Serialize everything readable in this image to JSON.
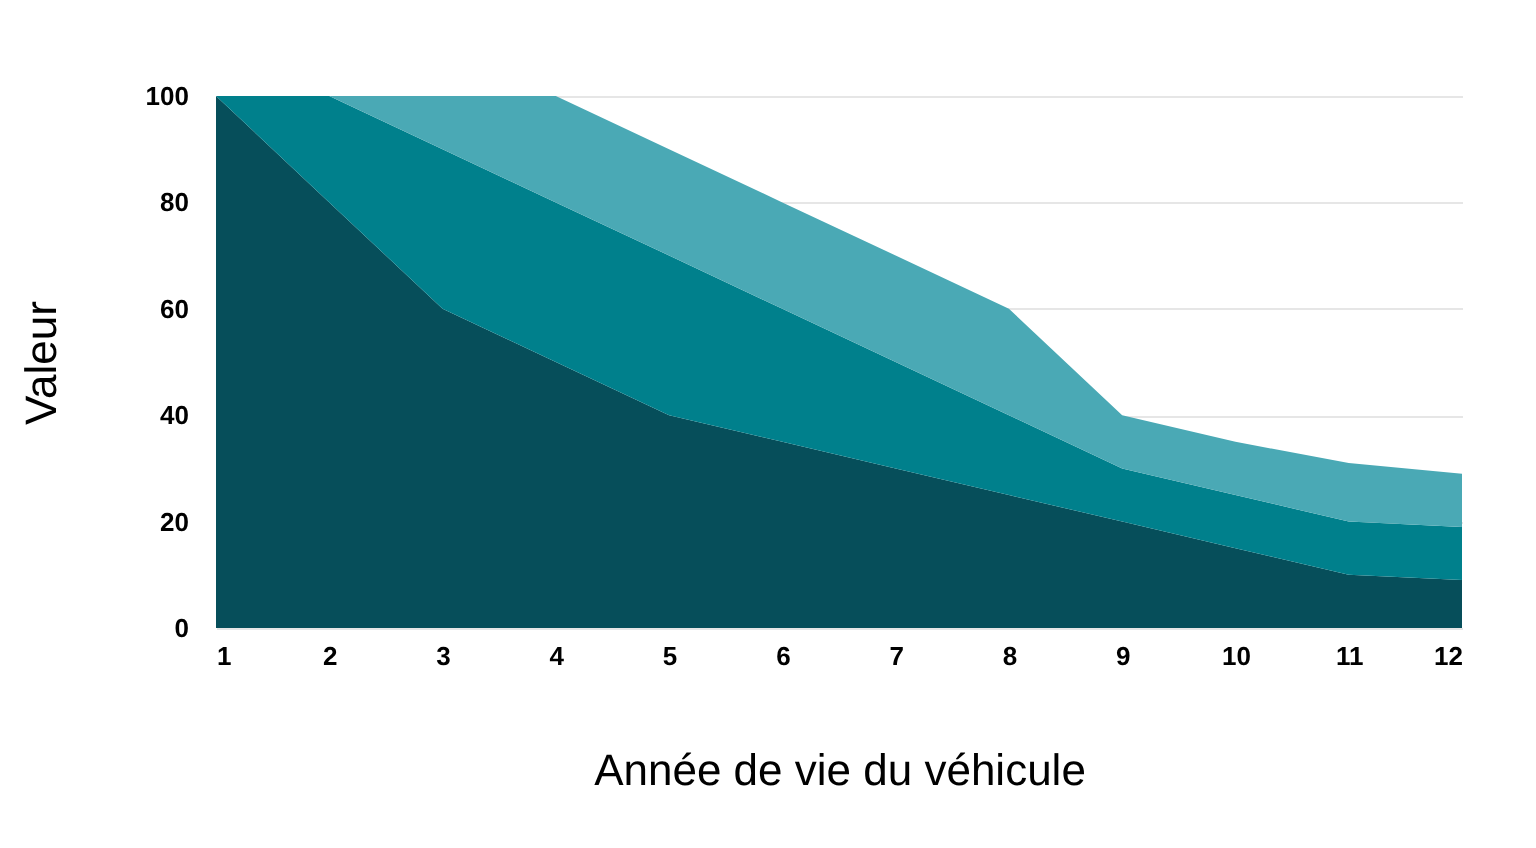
{
  "chart_data": {
    "type": "area",
    "stacked": true,
    "xlabel": "Année de vie du véhicule",
    "ylabel": "Valeur",
    "x": [
      1,
      2,
      3,
      4,
      5,
      6,
      7,
      8,
      9,
      10,
      11,
      12
    ],
    "xlim": [
      1,
      12
    ],
    "xticks": [
      1,
      2,
      3,
      4,
      5,
      6,
      7,
      8,
      9,
      10,
      11,
      12
    ],
    "ylim": [
      0,
      100
    ],
    "yticks": [
      0,
      20,
      40,
      60,
      80,
      100
    ],
    "grid": "y",
    "series": [
      {
        "color": "#064e5a",
        "values": [
          100,
          80,
          60,
          50,
          40,
          35,
          30,
          25,
          20,
          15,
          10,
          9
        ]
      },
      {
        "color": "#00808c",
        "values": [
          0,
          20,
          30,
          30,
          30,
          25,
          20,
          15,
          10,
          10,
          10,
          10
        ]
      },
      {
        "color": "#4aa9b5",
        "values": [
          0,
          0,
          10,
          20,
          20,
          20,
          20,
          20,
          10,
          10,
          11,
          10
        ]
      }
    ]
  }
}
